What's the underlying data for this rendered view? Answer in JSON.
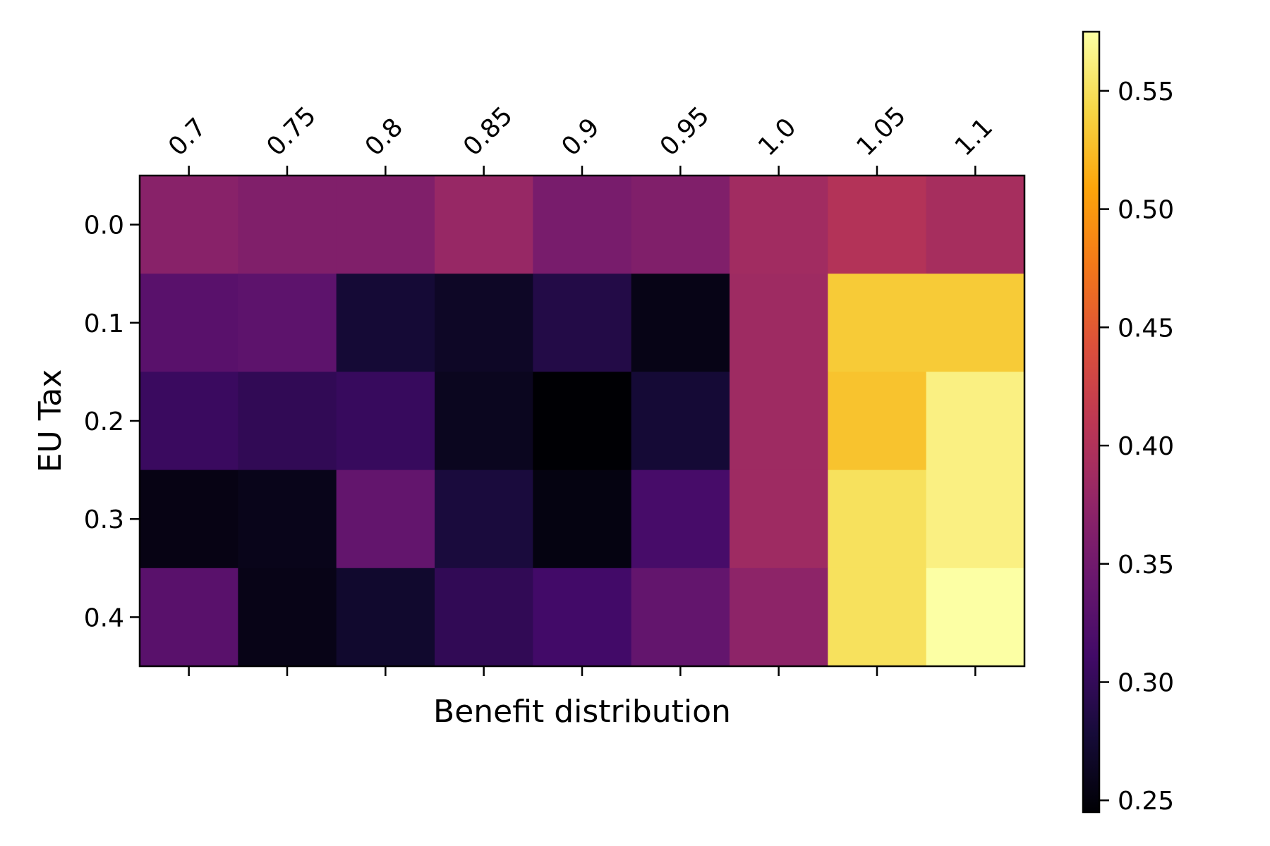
{
  "chart_data": {
    "type": "heatmap",
    "title": "",
    "xlabel": "Benefit distribution",
    "ylabel": "EU Tax",
    "x_categories": [
      "0.7",
      "0.75",
      "0.8",
      "0.85",
      "0.9",
      "0.95",
      "1.0",
      "1.05",
      "1.1"
    ],
    "y_categories": [
      "0.0",
      "0.1",
      "0.2",
      "0.3",
      "0.4"
    ],
    "x_tick_position": "top",
    "values": [
      [
        0.368,
        0.362,
        0.362,
        0.38,
        0.355,
        0.362,
        0.388,
        0.403,
        0.392
      ],
      [
        0.33,
        0.333,
        0.276,
        0.266,
        0.288,
        0.256,
        0.386,
        0.534,
        0.534
      ],
      [
        0.305,
        0.298,
        0.303,
        0.262,
        0.245,
        0.276,
        0.386,
        0.529,
        0.563
      ],
      [
        0.255,
        0.259,
        0.338,
        0.281,
        0.253,
        0.315,
        0.386,
        0.55,
        0.563
      ],
      [
        0.33,
        0.257,
        0.271,
        0.298,
        0.311,
        0.338,
        0.372,
        0.55,
        0.575
      ]
    ],
    "colorbar": {
      "colormap": "inferno",
      "range": [
        0.245,
        0.575
      ],
      "ticks": [
        "0.25",
        "0.30",
        "0.35",
        "0.40",
        "0.45",
        "0.50",
        "0.55"
      ]
    },
    "grid": false,
    "legend": "none"
  }
}
